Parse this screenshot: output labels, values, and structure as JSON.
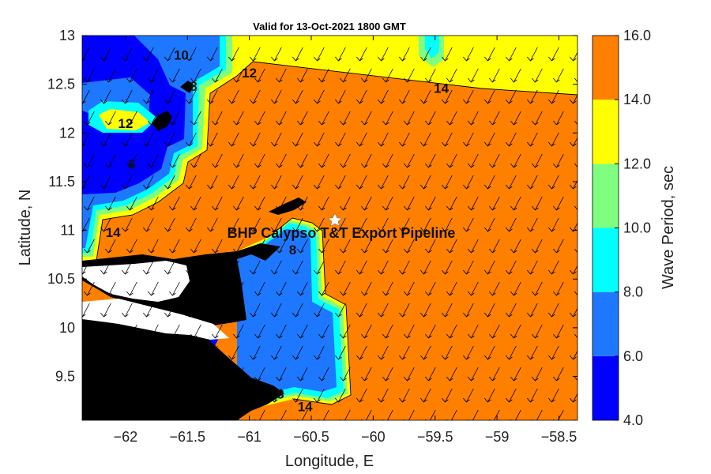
{
  "chart_data": {
    "type": "heatmap",
    "title": "Valid for 13-Oct-2021 1800 GMT",
    "xlabel": "Longitude, E",
    "ylabel": "Latitude, N",
    "xlim": [
      -62.35,
      -58.35
    ],
    "ylim": [
      9.05,
      13.0
    ],
    "x_ticks": [
      -62,
      -61.5,
      -61,
      -60.5,
      -60,
      -59.5,
      -59,
      -58.5
    ],
    "y_ticks": [
      9.5,
      10,
      10.5,
      11,
      11.5,
      12,
      12.5,
      13
    ],
    "colorbar": {
      "label": "Wave Period, sec",
      "levels": [
        4.0,
        6.0,
        8.0,
        10.0,
        12.0,
        14.0,
        16.0
      ],
      "tick_labels": [
        "4.0",
        "6.0",
        "8.0",
        "10.0",
        "12.0",
        "14.0",
        "16.0"
      ],
      "colors": [
        "#0000ff",
        "#1e78ff",
        "#00ffff",
        "#7fff7f",
        "#ffff00",
        "#ff7f00"
      ]
    },
    "annotation": {
      "text": "BHP Calypso T&T Export Pipeline",
      "lon": -60.3,
      "lat": 11.07
    },
    "contour_labels": [
      {
        "text": "14",
        "lon": -59.45,
        "lat": 12.46
      },
      {
        "text": "6",
        "lon": -61.95,
        "lat": 11.68
      },
      {
        "text": "14",
        "lon": -62.1,
        "lat": 10.98
      },
      {
        "text": "10",
        "lon": -61.55,
        "lat": 12.8
      },
      {
        "text": "12",
        "lon": -61.0,
        "lat": 12.62
      },
      {
        "text": "8",
        "lon": -61.45,
        "lat": 12.48
      },
      {
        "text": "12",
        "lon": -62.0,
        "lat": 12.1
      },
      {
        "text": "8",
        "lon": -60.65,
        "lat": 10.8
      },
      {
        "text": "8",
        "lon": -60.75,
        "lat": 9.32
      },
      {
        "text": "14",
        "lon": -60.55,
        "lat": 9.19
      }
    ],
    "grid": false,
    "vectors": "wave direction arrows pointing toward the south-west"
  }
}
